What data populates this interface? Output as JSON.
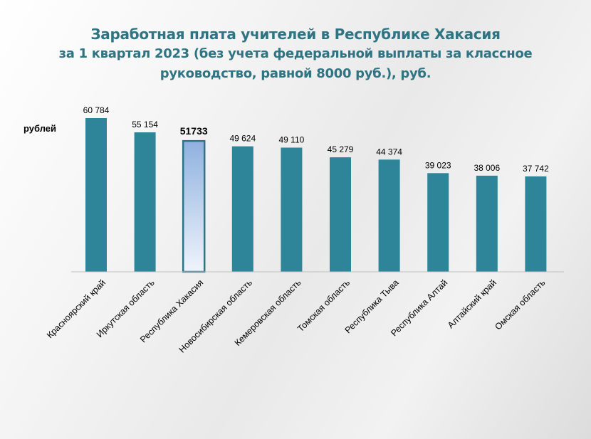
{
  "chart_data": {
    "type": "bar",
    "title_lines": [
      "Заработная плата учителей в Республике Хакасия",
      "за 1 квартал 2023 (без учета федеральной выплаты за классное",
      "руководство, равной 8000 руб.), руб."
    ],
    "ylabel": "рублей",
    "categories": [
      "Красноярский край",
      "Иркутская область",
      "Республика Хакасия",
      "Новосибирская область",
      "Кемеровская область",
      "Томская область",
      "Республика Тыва",
      "Республика Алтай",
      "Алтайский край",
      "Омская область"
    ],
    "values": [
      60784,
      55154,
      51733,
      49624,
      49110,
      45279,
      44374,
      39023,
      38006,
      37742
    ],
    "value_labels": [
      "60 784",
      "55 154",
      "51733",
      "49 624",
      "49 110",
      "45 279",
      "44 374",
      "39 023",
      "38 006",
      "37 742"
    ],
    "highlight_index": 2,
    "ylim": [
      0,
      60784
    ],
    "grid": false,
    "legend": "none",
    "colors": {
      "bar": "#2e8499",
      "highlight_top": "#8fb1df",
      "highlight_bottom": "#eef4fc",
      "highlight_border": "#2e7386",
      "title": "#2f7483"
    }
  }
}
